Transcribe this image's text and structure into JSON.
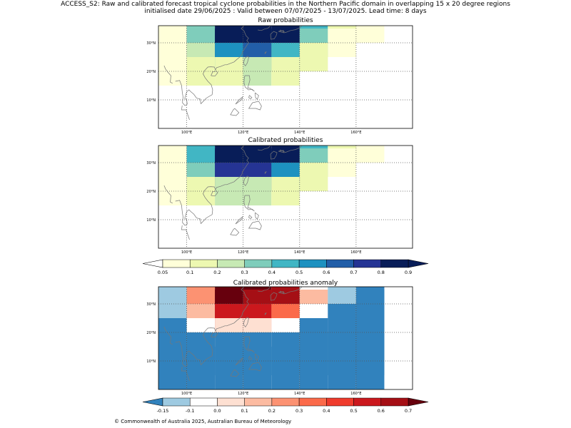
{
  "header": {
    "line1": "ACCESS_S2: Raw and calibrated forecast tropical cyclone probabilities in the Northern Pacific domain in overlapping 15 x 20 degree regions",
    "line2": "initialised date 29/06/2025 :  Valid between 07/07/2025 - 13/07/2025. Lead time: 8 days"
  },
  "footer": "© Commonwealth of Australia 2025, Australian Bureau of Meteorology",
  "map": {
    "lon_ticks": [
      "100°E",
      "120°E",
      "140°E",
      "160°E"
    ],
    "lat_ticks": [
      "30°N",
      "20°N",
      "10°N"
    ]
  },
  "colorbars": {
    "prob": {
      "labels": [
        "0.05",
        "0.1",
        "0.2",
        "0.3",
        "0.4",
        "0.5",
        "0.6",
        "0.7",
        "0.8",
        "0.9"
      ],
      "colors": [
        "#ffffd9",
        "#edf8b1",
        "#c7e9b4",
        "#7fcdbb",
        "#41b6c4",
        "#1d91c0",
        "#225ea8",
        "#253494",
        "#081d58"
      ],
      "under_color": "#ffffff",
      "over_color": "#081d58"
    },
    "anom": {
      "labels": [
        "-0.15",
        "-0.1",
        "0.0",
        "0.1",
        "0.2",
        "0.3",
        "0.4",
        "0.5",
        "0.6",
        "0.7"
      ],
      "colors": [
        "#9ecae1",
        "#ffffff",
        "#fee0d2",
        "#fcbba1",
        "#fc9272",
        "#fb6a4a",
        "#ef3b2c",
        "#cb181d",
        "#a50f15"
      ],
      "under_color": "#3182bd",
      "over_color": "#67000d"
    }
  },
  "chart_data": [
    {
      "type": "heatmap",
      "title": "Raw probabilities",
      "x": [
        95,
        105,
        115,
        125,
        135,
        145,
        155,
        165
      ],
      "y": [
        35,
        30,
        25,
        20,
        15,
        10,
        5
      ],
      "values": [
        [
          0.07,
          0.35,
          0.85,
          0.95,
          0.95,
          0.45,
          0.15,
          0.08
        ],
        [
          0.07,
          0.35,
          0.85,
          0.95,
          0.85,
          0.35,
          0.08,
          null
        ],
        [
          0.07,
          0.25,
          0.55,
          0.65,
          0.45,
          0.15,
          null,
          null
        ],
        [
          0.07,
          0.15,
          0.15,
          0.25,
          0.15,
          null,
          null,
          null
        ],
        [
          null,
          null,
          null,
          null,
          null,
          null,
          null,
          null
        ],
        [
          null,
          null,
          null,
          null,
          null,
          null,
          null,
          null
        ],
        [
          null,
          null,
          null,
          null,
          null,
          null,
          null,
          null
        ]
      ]
    },
    {
      "type": "heatmap",
      "title": "Calibrated probabilities",
      "x": [
        95,
        105,
        115,
        125,
        135,
        145,
        155,
        165
      ],
      "y": [
        35,
        30,
        25,
        20,
        15,
        10,
        5
      ],
      "values": [
        [
          0.07,
          0.45,
          0.95,
          0.95,
          0.95,
          0.45,
          0.15,
          0.08
        ],
        [
          0.07,
          0.45,
          0.95,
          0.95,
          0.85,
          0.35,
          0.08,
          null
        ],
        [
          0.07,
          0.35,
          0.75,
          0.75,
          0.55,
          0.15,
          null,
          null
        ],
        [
          0.07,
          0.15,
          0.25,
          0.25,
          0.15,
          null,
          null,
          null
        ],
        [
          null,
          null,
          null,
          null,
          null,
          null,
          null,
          null
        ],
        [
          null,
          null,
          null,
          null,
          null,
          null,
          null,
          null
        ],
        [
          null,
          null,
          null,
          null,
          null,
          null,
          null,
          null
        ]
      ]
    },
    {
      "type": "heatmap",
      "title": "Calibrated probabilities anomaly",
      "x": [
        95,
        105,
        115,
        125,
        135,
        145,
        155,
        165
      ],
      "y": [
        35,
        30,
        25,
        20,
        15,
        10,
        5
      ],
      "values": [
        [
          -0.12,
          0.25,
          0.75,
          0.75,
          0.65,
          -0.05,
          -0.12,
          -0.2
        ],
        [
          -0.12,
          0.25,
          0.75,
          0.65,
          0.65,
          0.15,
          -0.12,
          -0.2
        ],
        [
          -0.12,
          0.15,
          0.55,
          0.55,
          0.35,
          -0.05,
          -0.2,
          -0.2
        ],
        [
          -0.2,
          -0.05,
          0.05,
          0.05,
          -0.05,
          -0.2,
          -0.2,
          -0.2
        ],
        [
          -0.2,
          -0.2,
          -0.2,
          -0.2,
          -0.2,
          -0.2,
          -0.2,
          -0.2
        ],
        [
          -0.2,
          -0.2,
          -0.2,
          -0.2,
          -0.2,
          -0.2,
          -0.2,
          -0.2
        ],
        [
          -0.2,
          -0.2,
          -0.2,
          -0.2,
          -0.2,
          -0.2,
          -0.2,
          -0.2
        ]
      ]
    }
  ]
}
